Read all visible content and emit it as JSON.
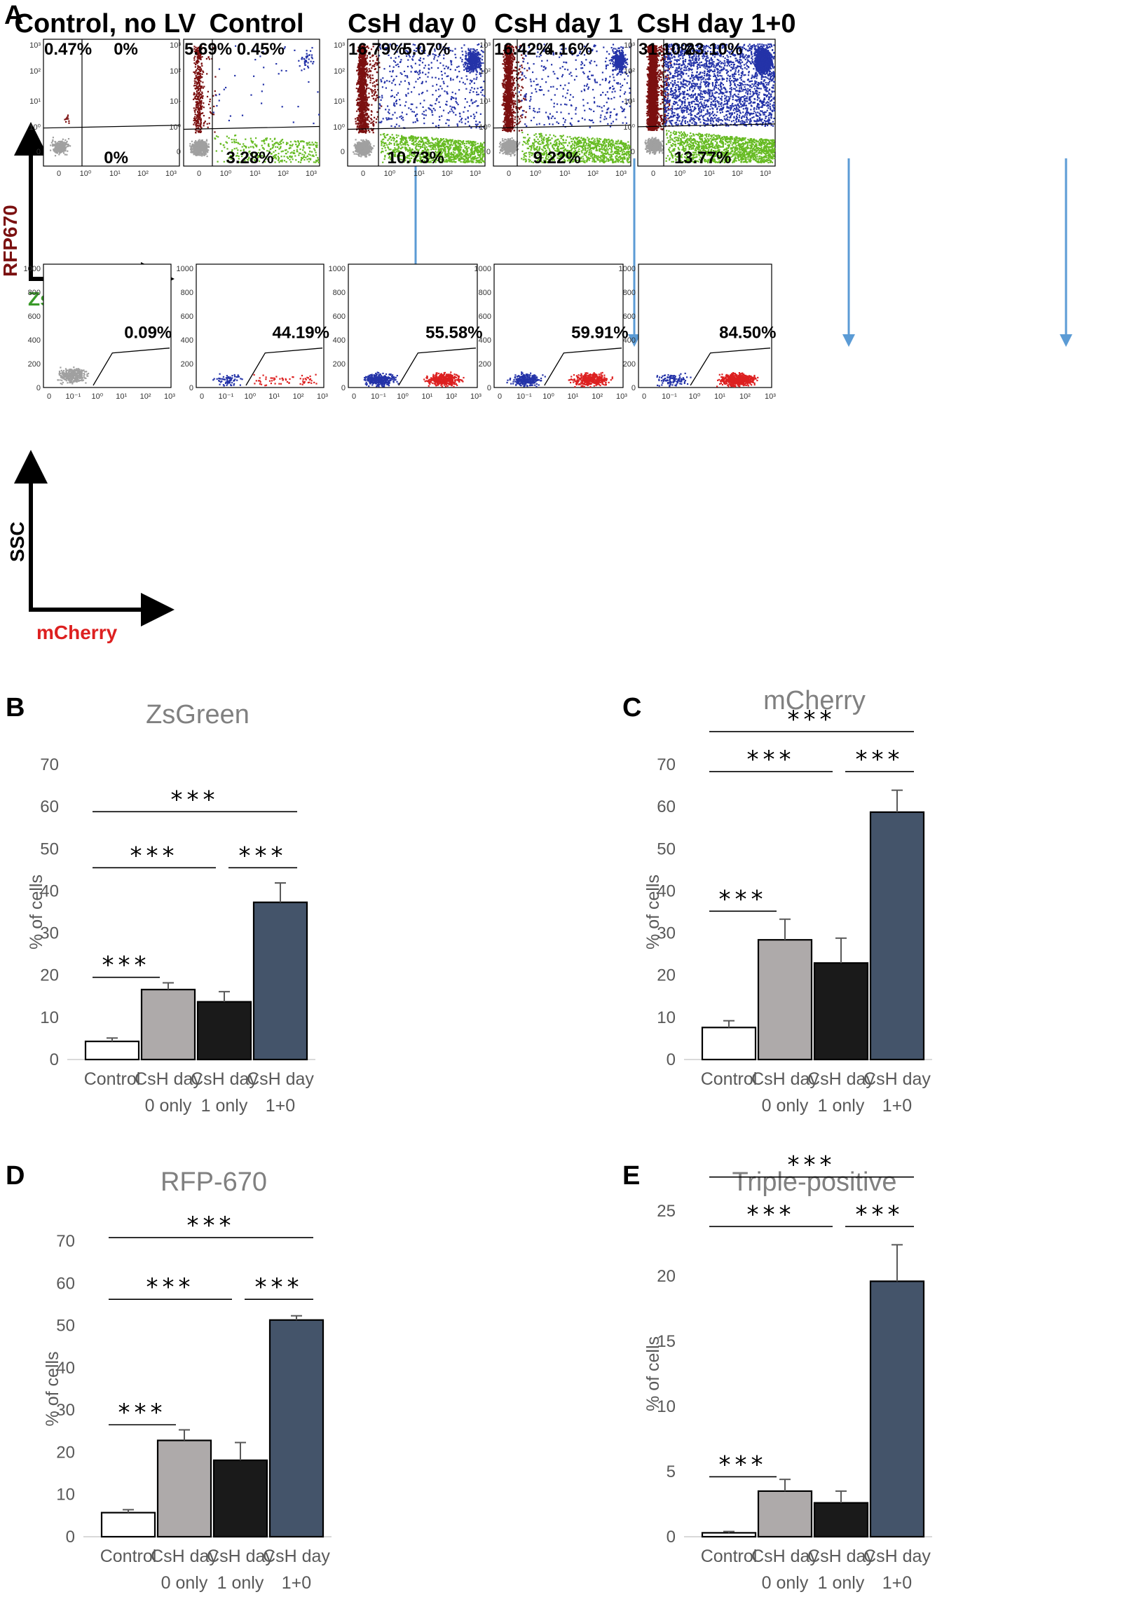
{
  "panel_letters": {
    "a": "A",
    "b": "B",
    "c": "C",
    "d": "D",
    "e": "E"
  },
  "colors": {
    "rfp": "#7b1010",
    "dp": "#2433a8",
    "zsg": "#66bb22",
    "neg": "#a0a0a0",
    "mch": "#dd2020",
    "arrow": "#5b9bd5",
    "bar_control": "#ffffff",
    "bar_day0": "#aeaaaa",
    "bar_day1": "#1a1a1a",
    "bar_day10": "#44546a"
  },
  "axes_a": {
    "top_y": "RFP670",
    "top_x": "ZsGreen",
    "bottom_y": "SSC",
    "bottom_x": "mCherry",
    "log_ticks": [
      "0",
      "10⁰",
      "10¹",
      "10²",
      "10³"
    ],
    "ssc_ticks": [
      "0",
      "200",
      "400",
      "600",
      "800",
      "1000"
    ],
    "mch_ticks": [
      "0",
      "10⁻¹",
      "10⁰",
      "10¹",
      "10²",
      "10³"
    ]
  },
  "flow_plots": [
    {
      "title": "Control, no LV",
      "q_tl": "0.47%",
      "q_tr": "0%",
      "q_br": "0%",
      "mcherry_pct": "0.09%",
      "mcherry_fraction": 0.0009
    },
    {
      "title": "Control",
      "q_tl": "5.69%",
      "q_tr": "0.45%",
      "q_br": "3.28%",
      "mcherry_pct": "44.19%",
      "mcherry_fraction": 0.4419
    },
    {
      "title": "CsH day 0",
      "q_tl": "16.79%",
      "q_tr": "5.07%",
      "q_br": "10.73%",
      "mcherry_pct": "55.58%",
      "mcherry_fraction": 0.5558
    },
    {
      "title": "CsH day 1",
      "q_tl": "16.42%",
      "q_tr": "4.16%",
      "q_br": "9.22%",
      "mcherry_pct": "59.91%",
      "mcherry_fraction": 0.5991
    },
    {
      "title": "CsH day 1+0",
      "q_tl": "31.10%",
      "q_tr": "23.10%",
      "q_br": "13.77%",
      "mcherry_pct": "84.50%",
      "mcherry_fraction": 0.845
    }
  ],
  "chart_data": [
    {
      "type": "bar",
      "panel": "B",
      "title": "ZsGreen",
      "ylabel": "% of cells",
      "categories": [
        [
          "Control"
        ],
        [
          "CsH day",
          "0 only"
        ],
        [
          "CsH day",
          "1 only"
        ],
        [
          "CsH day",
          "1+0"
        ]
      ],
      "values": [
        4.3,
        16.6,
        13.7,
        37.3
      ],
      "errors": [
        0.8,
        1.6,
        2.4,
        4.6
      ],
      "ylim": [
        0,
        70
      ],
      "yticks": [
        0,
        10,
        20,
        30,
        40,
        50,
        60,
        70
      ],
      "significance": [
        {
          "from": 0,
          "to": 1,
          "label": "***",
          "y": 19.5
        },
        {
          "from": 0,
          "to": 2,
          "label": "***",
          "y": 45.5
        },
        {
          "from": 2,
          "to": 3,
          "label": "***",
          "y": 45.5
        },
        {
          "from": 0,
          "to": 3,
          "label": "***",
          "y": 58.8
        }
      ]
    },
    {
      "type": "bar",
      "panel": "C",
      "title": "mCherry",
      "ylabel": "% of cells",
      "categories": [
        [
          "Control"
        ],
        [
          "CsH day",
          "0 only"
        ],
        [
          "CsH day",
          "1 only"
        ],
        [
          "CsH day",
          "1+0"
        ]
      ],
      "values": [
        7.6,
        28.4,
        22.9,
        58.7
      ],
      "errors": [
        1.6,
        4.9,
        5.9,
        5.2
      ],
      "ylim": [
        0,
        70
      ],
      "yticks": [
        0,
        10,
        20,
        30,
        40,
        50,
        60,
        70
      ],
      "significance": [
        {
          "from": 0,
          "to": 1,
          "label": "***",
          "y": 35.2
        },
        {
          "from": 0,
          "to": 2,
          "label": "***",
          "y": 68.3
        },
        {
          "from": 2,
          "to": 3,
          "label": "***",
          "y": 68.3
        },
        {
          "from": 0,
          "to": 3,
          "label": "***",
          "y": 77.8
        }
      ]
    },
    {
      "type": "bar",
      "panel": "D",
      "title": "RFP-670",
      "ylabel": "% of cells",
      "categories": [
        [
          "Control"
        ],
        [
          "CsH day",
          "0 only"
        ],
        [
          "CsH day",
          "1 only"
        ],
        [
          "CsH day",
          "1+0"
        ]
      ],
      "values": [
        5.7,
        22.8,
        18.1,
        51.3
      ],
      "errors": [
        0.7,
        2.5,
        4.2,
        1.0
      ],
      "ylim": [
        0,
        70
      ],
      "yticks": [
        0,
        10,
        20,
        30,
        40,
        50,
        60,
        70
      ],
      "significance": [
        {
          "from": 0,
          "to": 1,
          "label": "***",
          "y": 26.5
        },
        {
          "from": 0,
          "to": 2,
          "label": "***",
          "y": 56.2
        },
        {
          "from": 2,
          "to": 3,
          "label": "***",
          "y": 56.2
        },
        {
          "from": 0,
          "to": 3,
          "label": "***",
          "y": 70.8
        }
      ]
    },
    {
      "type": "bar",
      "panel": "E",
      "title": "Triple-positive",
      "ylabel": "% of cells",
      "categories": [
        [
          "Control"
        ],
        [
          "CsH day",
          "0 only"
        ],
        [
          "CsH day",
          "1 only"
        ],
        [
          "CsH day",
          "1+0"
        ]
      ],
      "values": [
        0.3,
        3.5,
        2.6,
        19.6
      ],
      "errors": [
        0.1,
        0.9,
        0.9,
        2.8
      ],
      "ylim": [
        0,
        25
      ],
      "yticks": [
        0,
        5,
        10,
        15,
        20,
        25
      ],
      "significance": [
        {
          "from": 0,
          "to": 1,
          "label": "***",
          "y": 4.6
        },
        {
          "from": 0,
          "to": 2,
          "label": "***",
          "y": 23.8
        },
        {
          "from": 2,
          "to": 3,
          "label": "***",
          "y": 23.8
        },
        {
          "from": 0,
          "to": 3,
          "label": "***",
          "y": 27.6
        }
      ]
    }
  ]
}
